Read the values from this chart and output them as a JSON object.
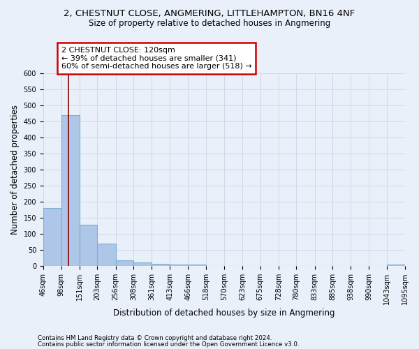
{
  "title": "2, CHESTNUT CLOSE, ANGMERING, LITTLEHAMPTON, BN16 4NF",
  "subtitle": "Size of property relative to detached houses in Angmering",
  "xlabel": "Distribution of detached houses by size in Angmering",
  "ylabel": "Number of detached properties",
  "bin_edges": [
    46,
    98,
    151,
    203,
    256,
    308,
    361,
    413,
    466,
    518,
    570,
    623,
    675,
    728,
    780,
    833,
    885,
    938,
    990,
    1043,
    1095
  ],
  "bar_heights": [
    180,
    470,
    128,
    70,
    18,
    12,
    7,
    5,
    5,
    0,
    0,
    0,
    0,
    0,
    0,
    0,
    0,
    0,
    0,
    5
  ],
  "bar_color": "#aec6e8",
  "bar_edge_color": "#7aafd4",
  "property_size": 120,
  "red_line_x": 120,
  "annotation_text": "2 CHESTNUT CLOSE: 120sqm\n← 39% of detached houses are smaller (341)\n60% of semi-detached houses are larger (518) →",
  "annotation_box_color": "#ffffff",
  "annotation_box_edge_color": "#cc0000",
  "ylim": [
    0,
    600
  ],
  "yticks": [
    0,
    50,
    100,
    150,
    200,
    250,
    300,
    350,
    400,
    450,
    500,
    550,
    600
  ],
  "footer_line1": "Contains HM Land Registry data © Crown copyright and database right 2024.",
  "footer_line2": "Contains public sector information licensed under the Open Government Licence v3.0.",
  "background_color": "#eaf0f9",
  "grid_color": "#d0d8e8",
  "tick_label_fontsize": 7,
  "axis_label_fontsize": 8.5,
  "title_fontsize": 9.5,
  "subtitle_fontsize": 8.5,
  "annotation_fontsize": 8
}
